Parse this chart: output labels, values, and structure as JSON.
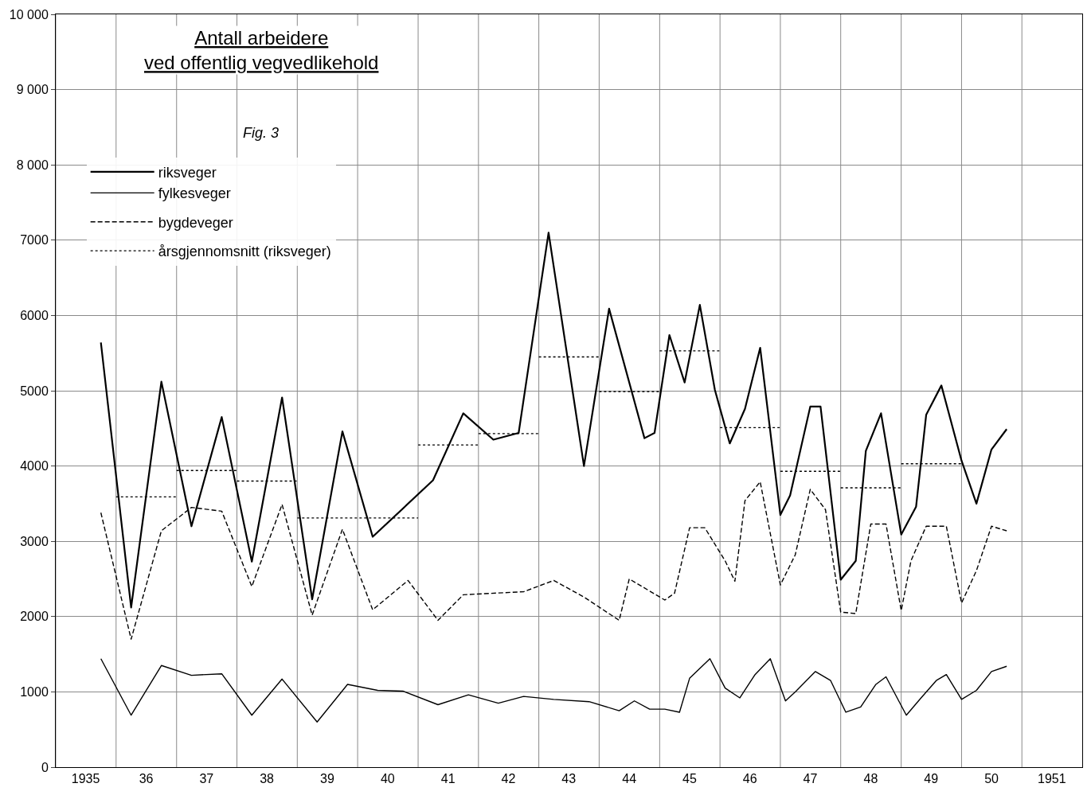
{
  "chart_data": {
    "type": "line",
    "title": "Antall arbeidere\nved offentlig vegvedlikehold",
    "subtitle": "Fig. 3",
    "xlim": [
      "1935",
      "1952"
    ],
    "ylim": [
      0,
      10000
    ],
    "xticks": [
      {
        "value": "1935",
        "label": null
      },
      {
        "value": "1935-07",
        "label": "1935"
      },
      {
        "value": "1936",
        "label": null
      },
      {
        "value": "1936-07",
        "label": "36"
      },
      {
        "value": "1937",
        "label": null
      },
      {
        "value": "1937-07",
        "label": "37"
      },
      {
        "value": "1938",
        "label": null
      },
      {
        "value": "1938-07",
        "label": "38"
      },
      {
        "value": "1939",
        "label": null
      },
      {
        "value": "1939-07",
        "label": "39"
      },
      {
        "value": "1940",
        "label": null
      },
      {
        "value": "1940-07",
        "label": "40"
      },
      {
        "value": "1941",
        "label": null
      },
      {
        "value": "1941-07",
        "label": "41"
      },
      {
        "value": "1942",
        "label": null
      },
      {
        "value": "1942-07",
        "label": "42"
      },
      {
        "value": "1943",
        "label": null
      },
      {
        "value": "1943-07",
        "label": "43"
      },
      {
        "value": "1944",
        "label": null
      },
      {
        "value": "1944-07",
        "label": "44"
      },
      {
        "value": "1945",
        "label": null
      },
      {
        "value": "1945-07",
        "label": "45"
      },
      {
        "value": "1946",
        "label": null
      },
      {
        "value": "1946-07",
        "label": "46"
      },
      {
        "value": "1947",
        "label": null
      },
      {
        "value": "1947-07",
        "label": "47"
      },
      {
        "value": "1948",
        "label": null
      },
      {
        "value": "1948-07",
        "label": "48"
      },
      {
        "value": "1949",
        "label": null
      },
      {
        "value": "1949-07",
        "label": "49"
      },
      {
        "value": "1950",
        "label": null
      },
      {
        "value": "1950-07",
        "label": "50"
      },
      {
        "value": "1951",
        "label": null
      },
      {
        "value": "1951-07",
        "label": "1951"
      }
    ],
    "yticks": [
      0,
      1000,
      2000,
      3000,
      4000,
      5000,
      6000,
      7000,
      {
        "value": 8000,
        "label": "8 000"
      },
      {
        "value": 9000,
        "label": "9 000"
      },
      {
        "value": 10000,
        "label": "10 000"
      }
    ],
    "grid": true,
    "legend": "top left",
    "series": [
      {
        "name": "riksveger",
        "color": "#000000",
        "line_style": "solid",
        "x": [
          "1935-10",
          "1936-04",
          "1936-10",
          "1937-04",
          "1937-10",
          "1938-04",
          "1938-10",
          "1939-04",
          "1939-10",
          "1940-04",
          "1941-04",
          "1941-10",
          "1942-04",
          "1942-09",
          "1943-03",
          "1943-10",
          "1944-03",
          "1944-10",
          "1944-12",
          "1945-03",
          "1945-06",
          "1945-09",
          "1945-12",
          "1946-03",
          "1946-06",
          "1946-09",
          "1947-01",
          "1947-03",
          "1947-07",
          "1947-09",
          "1948-01",
          "1948-04",
          "1948-06",
          "1948-09",
          "1949-01",
          "1949-04",
          "1949-06",
          "1949-09",
          "1950-01",
          "1950-04",
          "1950-07",
          "1950-10"
        ],
        "values": [
          5640,
          2120,
          5120,
          3200,
          4650,
          2730,
          4910,
          2230,
          4460,
          3060,
          3810,
          4700,
          4350,
          4440,
          7100,
          4000,
          6090,
          4370,
          4440,
          5740,
          5110,
          6140,
          5010,
          4300,
          4760,
          5570,
          3350,
          3610,
          4790,
          4790,
          2490,
          2740,
          4200,
          4700,
          3090,
          3460,
          4680,
          5070,
          4070,
          3500,
          4220,
          4490
        ]
      },
      {
        "name": "fylkesveger",
        "color": "#000000",
        "line_style": "solid",
        "x": [
          "1935-10",
          "1936-04",
          "1936-10",
          "1937-04",
          "1937-10",
          "1938-04",
          "1938-10",
          "1939-05",
          "1939-11",
          "1940-05",
          "1940-10",
          "1941-05",
          "1941-11",
          "1942-05",
          "1942-10",
          "1943-04",
          "1943-11",
          "1944-05",
          "1944-08",
          "1944-11",
          "1945-02",
          "1945-05",
          "1945-07",
          "1945-11",
          "1946-02",
          "1946-05",
          "1946-08",
          "1946-11",
          "1947-02",
          "1947-04",
          "1947-08",
          "1947-11",
          "1948-02",
          "1948-05",
          "1948-08",
          "1948-10",
          "1949-02",
          "1949-05",
          "1949-08",
          "1949-10",
          "1950-01",
          "1950-04",
          "1950-07",
          "1950-10"
        ],
        "values": [
          1440,
          690,
          1350,
          1220,
          1240,
          690,
          1170,
          600,
          1100,
          1020,
          1010,
          830,
          960,
          850,
          940,
          900,
          870,
          750,
          880,
          770,
          770,
          730,
          1180,
          1440,
          1050,
          920,
          1230,
          1440,
          880,
          1000,
          1270,
          1150,
          730,
          800,
          1100,
          1200,
          690,
          920,
          1150,
          1230,
          900,
          1020,
          1270,
          1340
        ]
      },
      {
        "name": "bygdeveger",
        "color": "#000000",
        "line_style": "dashed",
        "x": [
          "1935-10",
          "1936-04",
          "1936-10",
          "1937-04",
          "1937-10",
          "1938-04",
          "1938-10",
          "1939-04",
          "1939-10",
          "1940-04",
          "1940-11",
          "1941-05",
          "1941-10",
          "1942-10",
          "1943-04",
          "1943-10",
          "1944-05",
          "1944-07",
          "1945-02",
          "1945-04",
          "1945-07",
          "1945-10",
          "1946-02",
          "1946-04",
          "1946-06",
          "1946-09",
          "1947-01",
          "1947-04",
          "1947-07",
          "1947-10",
          "1948-01",
          "1948-04",
          "1948-07",
          "1948-10",
          "1949-01",
          "1949-03",
          "1949-06",
          "1949-10",
          "1950-01",
          "1950-04",
          "1950-07",
          "1950-10"
        ],
        "values": [
          3380,
          1700,
          3140,
          3450,
          3400,
          2400,
          3490,
          2020,
          3160,
          2090,
          2480,
          1950,
          2290,
          2330,
          2480,
          2260,
          1950,
          2500,
          2220,
          2310,
          3180,
          3180,
          2740,
          2470,
          3540,
          3790,
          2420,
          2820,
          3690,
          3420,
          2060,
          2040,
          3230,
          3230,
          2080,
          2740,
          3200,
          3200,
          2180,
          2610,
          3200,
          3140
        ]
      },
      {
        "name": "årsgjennomsnitt (riksveger)",
        "color": "#000000",
        "line_style": "dotted",
        "x": [
          "1936",
          "1937"
        ],
        "values": [
          3590,
          3590
        ]
      },
      {
        "color": "#000000",
        "line_style": "dotted",
        "x": [
          "1937",
          "1938"
        ],
        "values": [
          3940,
          3940
        ]
      },
      {
        "color": "#000000",
        "line_style": "dotted",
        "x": [
          "1938",
          "1939"
        ],
        "values": [
          3800,
          3800
        ]
      },
      {
        "color": "#000000",
        "line_style": "dotted",
        "x": [
          "1939",
          "1940",
          "1941"
        ],
        "values": [
          3310,
          3310,
          3310
        ]
      },
      {
        "color": "#000000",
        "line_style": "dotted",
        "x": [
          "1941",
          "1942"
        ],
        "values": [
          4280,
          4280
        ]
      },
      {
        "color": "#000000",
        "line_style": "dotted",
        "x": [
          "1942",
          "1943"
        ],
        "values": [
          4430,
          4430
        ]
      },
      {
        "color": "#000000",
        "line_style": "dotted",
        "x": [
          "1943",
          "1944"
        ],
        "values": [
          5450,
          5450
        ]
      },
      {
        "color": "#000000",
        "line_style": "dotted",
        "x": [
          "1944",
          "1945"
        ],
        "values": [
          4990,
          4990
        ]
      },
      {
        "color": "#000000",
        "line_style": "dotted",
        "x": [
          "1945",
          "1946"
        ],
        "values": [
          5530,
          5530
        ]
      },
      {
        "color": "#000000",
        "line_style": "dotted",
        "x": [
          "1946",
          "1947"
        ],
        "values": [
          4510,
          4510
        ]
      },
      {
        "color": "#000000",
        "line_style": "dotted",
        "x": [
          "1947",
          "1948"
        ],
        "values": [
          3930,
          3930
        ]
      },
      {
        "color": "#000000",
        "line_style": "dotted",
        "x": [
          "1948",
          "1949"
        ],
        "values": [
          3710,
          3710
        ]
      },
      {
        "color": "#000000",
        "line_style": "dotted",
        "x": [
          "1949",
          "1950"
        ],
        "values": [
          4030,
          4030
        ]
      }
    ]
  }
}
